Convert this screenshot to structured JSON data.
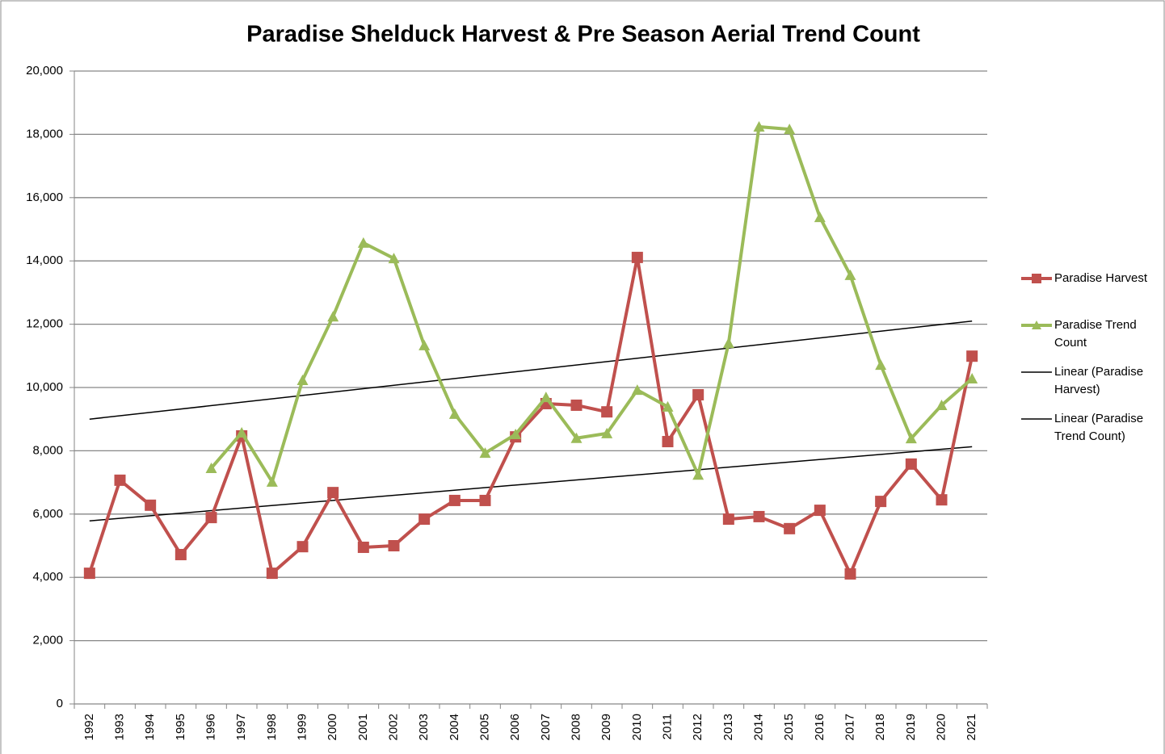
{
  "chart_data": {
    "type": "line",
    "title": "Paradise Shelduck Harvest & Pre Season Aerial Trend Count",
    "categories": [
      "1992",
      "1993",
      "1994",
      "1995",
      "1996",
      "1997",
      "1998",
      "1999",
      "2000",
      "2001",
      "2002",
      "2003",
      "2004",
      "2005",
      "2006",
      "2007",
      "2008",
      "2009",
      "2010",
      "2011",
      "2012",
      "2013",
      "2014",
      "2015",
      "2016",
      "2017",
      "2018",
      "2019",
      "2020",
      "2021"
    ],
    "series": [
      {
        "name": "Paradise Harvest",
        "color": "#c0504d",
        "marker": "square",
        "values": [
          4130,
          7070,
          6280,
          4720,
          5890,
          8470,
          4130,
          4970,
          6680,
          4950,
          5000,
          5840,
          6430,
          6430,
          8440,
          9490,
          9440,
          9230,
          14110,
          8290,
          9770,
          5840,
          5920,
          5540,
          6120,
          4110,
          6400,
          7580,
          6450,
          10990
        ]
      },
      {
        "name": "Paradise Trend Count",
        "color": "#9bbb59",
        "marker": "triangle",
        "values": [
          null,
          null,
          null,
          null,
          7450,
          8570,
          7020,
          10230,
          12240,
          14570,
          14080,
          11330,
          9160,
          7930,
          8520,
          9690,
          8400,
          8550,
          9920,
          9390,
          7240,
          11400,
          18240,
          18160,
          15380,
          13550,
          10710,
          8390,
          9440,
          10280
        ]
      }
    ],
    "trendlines": [
      {
        "name": "Linear (Paradise Harvest)",
        "color": "#000000",
        "series": 0
      },
      {
        "name": "Linear (Paradise Trend Count)",
        "color": "#000000",
        "series": 1
      }
    ],
    "ylim": [
      0,
      20000
    ],
    "yticks": [
      0,
      {
        "value": 2000,
        "label": "2,000"
      },
      {
        "value": 4000,
        "label": "4,000"
      },
      {
        "value": 6000,
        "label": "6,000"
      },
      {
        "value": 8000,
        "label": "8,000"
      },
      {
        "value": 10000,
        "label": "10,000"
      },
      {
        "value": 12000,
        "label": "12,000"
      },
      {
        "value": 14000,
        "label": "14,000"
      },
      {
        "value": 16000,
        "label": "16,000"
      },
      {
        "value": 18000,
        "label": "18,000"
      },
      {
        "value": 20000,
        "label": "20,000"
      }
    ],
    "grid": true,
    "legend": "right"
  }
}
